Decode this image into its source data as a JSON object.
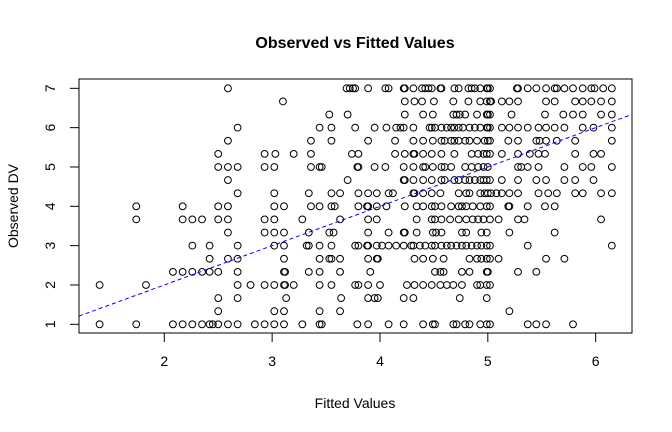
{
  "chart_data": {
    "type": "scatter",
    "title": "Observed vs Fitted Values",
    "xlabel": "Fitted Values",
    "ylabel": "Observed DV",
    "xlim": [
      1.209,
      6.337
    ],
    "ylim": [
      0.779,
      7.237
    ],
    "xticks": [
      2,
      3,
      4,
      5,
      6
    ],
    "yticks": [
      1,
      2,
      3,
      4,
      5,
      6,
      7
    ],
    "grid": false,
    "point_style": "open-circle",
    "point_color": "#000000",
    "fit_line": {
      "intercept": 0,
      "slope": 1,
      "style": "dashed",
      "color": "#0000ff"
    },
    "rows": [
      {
        "y": 7,
        "x": [
          2.59,
          3.69,
          3.72,
          3.75,
          3.77,
          3.89,
          4.05,
          4.08,
          4.22,
          4.23,
          4.31,
          4.39,
          4.42,
          4.45,
          4.48,
          4.56,
          4.57,
          4.69,
          4.73,
          4.82,
          4.85,
          4.88,
          4.93,
          4.99,
          5.0,
          5.02,
          5.27,
          5.28,
          5.37,
          5.45,
          5.54,
          5.62,
          5.64,
          5.71,
          5.79,
          5.88,
          5.96,
          5.99,
          6.07,
          6.15
        ]
      },
      {
        "y": 6.667,
        "x": [
          3.1,
          4.23,
          4.32,
          4.39,
          4.5,
          4.68,
          4.82,
          4.93,
          4.99,
          5.02,
          5.03,
          5.13,
          5.2,
          5.28,
          5.54,
          5.62,
          5.81,
          5.88,
          5.96,
          6.05,
          6.15
        ]
      },
      {
        "y": 6.333,
        "x": [
          3.53,
          3.7,
          4.23,
          4.4,
          4.49,
          4.68,
          4.71,
          4.74,
          4.79,
          4.9,
          4.99,
          5.0,
          5.02,
          5.22,
          5.53,
          5.7,
          5.79,
          5.88,
          6.05,
          6.15
        ]
      },
      {
        "y": 6,
        "x": [
          2.68,
          3.44,
          3.55,
          3.77,
          3.95,
          4.06,
          4.15,
          4.19,
          4.22,
          4.31,
          4.46,
          4.48,
          4.51,
          4.57,
          4.62,
          4.66,
          4.69,
          4.73,
          4.77,
          4.83,
          4.88,
          4.93,
          4.99,
          5.0,
          5.02,
          5.13,
          5.2,
          5.28,
          5.37,
          5.47,
          5.54,
          5.62,
          5.71,
          5.88,
          5.98,
          6.15
        ]
      },
      {
        "y": 5.667,
        "x": [
          2.59,
          3.36,
          3.55,
          3.89,
          4.14,
          4.31,
          4.4,
          4.49,
          4.57,
          4.6,
          4.66,
          4.69,
          4.73,
          4.79,
          4.83,
          4.9,
          4.97,
          5.0,
          5.02,
          5.19,
          5.28,
          5.45,
          5.48,
          5.54,
          5.64,
          5.81,
          6.15
        ]
      },
      {
        "y": 5.333,
        "x": [
          2.5,
          2.93,
          3.03,
          3.2,
          3.36,
          3.74,
          3.8,
          4.14,
          4.23,
          4.31,
          4.32,
          4.4,
          4.48,
          4.57,
          4.69,
          4.85,
          4.91,
          4.96,
          4.99,
          5.02,
          5.13,
          5.28,
          5.39,
          5.47,
          5.53,
          5.81,
          5.98,
          6.05
        ]
      },
      {
        "y": 5,
        "x": [
          2.5,
          2.59,
          2.68,
          2.93,
          3.02,
          3.36,
          3.44,
          3.46,
          3.79,
          3.8,
          3.95,
          4.05,
          4.22,
          4.31,
          4.4,
          4.42,
          4.49,
          4.57,
          4.6,
          4.66,
          4.79,
          4.85,
          4.91,
          4.96,
          5.0,
          5.28,
          5.31,
          5.37,
          5.47,
          5.71,
          5.88,
          5.96,
          6.15
        ]
      },
      {
        "y": 4.667,
        "x": [
          2.59,
          3.7,
          4.22,
          4.23,
          4.31,
          4.4,
          4.48,
          4.57,
          4.6,
          4.69,
          4.73,
          4.79,
          4.83,
          4.88,
          4.93,
          4.96,
          4.99,
          5.02,
          5.13,
          5.28,
          5.45,
          5.54,
          5.71,
          5.81,
          5.98
        ]
      },
      {
        "y": 4.333,
        "x": [
          2.68,
          3.02,
          3.34,
          3.55,
          3.63,
          3.8,
          3.89,
          3.97,
          4.08,
          4.12,
          4.31,
          4.32,
          4.4,
          4.48,
          4.56,
          4.73,
          4.8,
          4.83,
          4.93,
          4.97,
          5.0,
          5.03,
          5.08,
          5.13,
          5.2,
          5.28,
          5.47,
          5.56,
          5.64,
          5.81,
          5.88,
          6.05,
          6.15
        ]
      },
      {
        "y": 4,
        "x": [
          1.74,
          2.17,
          2.5,
          2.59,
          3.02,
          3.11,
          3.36,
          3.44,
          3.55,
          3.58,
          3.8,
          3.88,
          3.89,
          3.97,
          4.06,
          4.23,
          4.34,
          4.4,
          4.48,
          4.51,
          4.57,
          4.66,
          4.73,
          4.76,
          4.8,
          4.86,
          4.93,
          4.99,
          5.02,
          5.19,
          5.2,
          5.37,
          5.53,
          5.62
        ]
      },
      {
        "y": 3.667,
        "x": [
          1.74,
          2.17,
          2.26,
          2.35,
          2.5,
          2.59,
          2.93,
          3.02,
          3.28,
          3.63,
          3.89,
          3.97,
          4.34,
          4.48,
          4.51,
          4.57,
          4.65,
          4.73,
          4.8,
          4.86,
          4.91,
          4.96,
          5.02,
          5.1,
          5.28,
          5.34,
          6.05
        ]
      },
      {
        "y": 3.333,
        "x": [
          2.59,
          2.93,
          3.02,
          3.11,
          3.34,
          3.53,
          3.57,
          3.89,
          4.08,
          4.22,
          4.23,
          4.34,
          4.49,
          4.52,
          4.57,
          4.76,
          4.8,
          4.94,
          4.99,
          5.2,
          5.62
        ]
      },
      {
        "y": 3,
        "x": [
          2.26,
          2.42,
          2.68,
          3.02,
          3.11,
          3.32,
          3.34,
          3.44,
          3.55,
          3.77,
          3.8,
          3.88,
          3.89,
          3.97,
          4.02,
          4.08,
          4.15,
          4.22,
          4.29,
          4.31,
          4.37,
          4.42,
          4.48,
          4.51,
          4.57,
          4.62,
          4.66,
          4.71,
          4.76,
          4.8,
          4.85,
          4.9,
          4.94,
          4.99,
          5.02,
          5.37,
          6.15
        ]
      },
      {
        "y": 2.667,
        "x": [
          2.42,
          2.59,
          2.68,
          3.11,
          3.44,
          3.53,
          3.55,
          3.63,
          3.89,
          3.97,
          3.98,
          4.32,
          4.4,
          4.49,
          4.59,
          4.83,
          4.9,
          4.94,
          4.99,
          5.02,
          5.1,
          5.54,
          5.71
        ]
      },
      {
        "y": 2.333,
        "x": [
          2.08,
          2.17,
          2.26,
          2.35,
          2.42,
          2.5,
          2.68,
          3.11,
          3.12,
          3.34,
          3.44,
          3.63,
          3.91,
          4.51,
          4.56,
          4.59,
          4.76,
          4.83,
          4.99,
          5.0,
          5.28,
          5.45
        ]
      },
      {
        "y": 2,
        "x": [
          1.4,
          1.83,
          2.68,
          2.8,
          2.93,
          3.02,
          3.11,
          3.12,
          3.2,
          3.44,
          3.55,
          3.77,
          3.8,
          3.89,
          4.0,
          4.25,
          4.32,
          4.4,
          4.48,
          4.56,
          4.62,
          4.68,
          4.76,
          4.9,
          4.93,
          4.99,
          5.02
        ]
      },
      {
        "y": 1.667,
        "x": [
          2.5,
          2.68,
          3.13,
          3.64,
          3.89,
          3.95,
          3.98,
          4.22,
          4.31,
          4.74,
          4.99
        ]
      },
      {
        "y": 1.333,
        "x": [
          2.5,
          3.02,
          3.11,
          3.44,
          3.63,
          5.2
        ]
      },
      {
        "y": 1,
        "x": [
          1.4,
          1.74,
          2.08,
          2.17,
          2.26,
          2.35,
          2.42,
          2.45,
          2.5,
          2.59,
          2.68,
          2.84,
          2.93,
          3.02,
          3.11,
          3.28,
          3.44,
          3.46,
          3.79,
          3.89,
          4.08,
          4.22,
          4.4,
          4.49,
          4.51,
          4.68,
          4.71,
          4.79,
          4.83,
          4.93,
          4.99,
          5.02,
          5.37,
          5.45,
          5.54,
          5.79
        ]
      }
    ]
  }
}
